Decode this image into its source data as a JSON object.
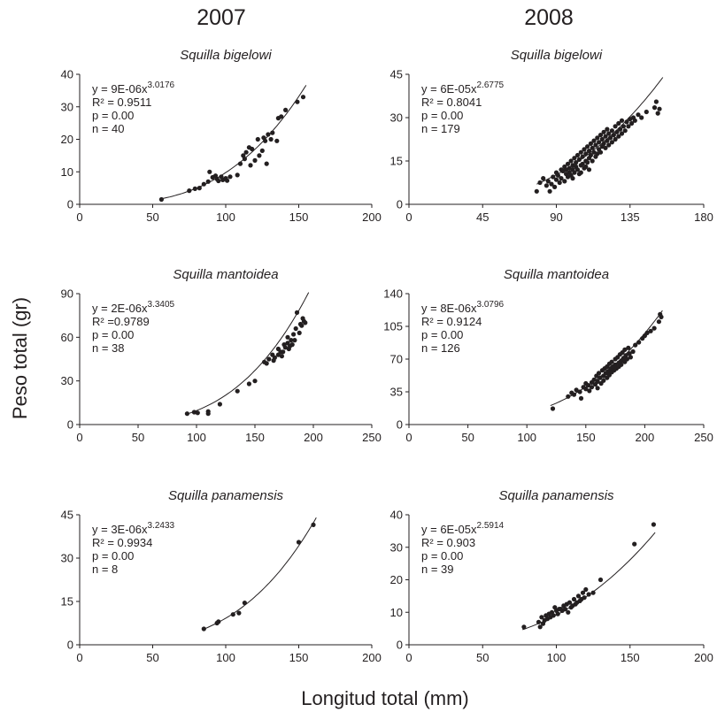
{
  "figure": {
    "years": [
      "2007",
      "2008"
    ],
    "ylabel": "Peso total (gr)",
    "xlabel": "Longitud total (mm)"
  },
  "chart_data": [
    {
      "type": "scatter",
      "year": "2007",
      "title": "Squilla bigelowi",
      "xlim": [
        0,
        200
      ],
      "ylim": [
        0,
        40
      ],
      "xticks": [
        0,
        50,
        100,
        150,
        200
      ],
      "yticks": [
        0,
        10,
        20,
        30,
        40
      ],
      "fit": {
        "a": 9e-06,
        "b": 3.0176,
        "x_range": [
          55,
          155
        ]
      },
      "equation": "y = 9E-06x",
      "exponent": "3.0176",
      "stats": [
        "R² = 0.9511",
        "p = 0.00",
        "n = 40"
      ],
      "points": [
        [
          56,
          1.5
        ],
        [
          75,
          4.2
        ],
        [
          79,
          4.8
        ],
        [
          82,
          5.0
        ],
        [
          85,
          6.2
        ],
        [
          88,
          7.0
        ],
        [
          89,
          10.0
        ],
        [
          91,
          8.3
        ],
        [
          93,
          8.8
        ],
        [
          94,
          7.8
        ],
        [
          95,
          7.2
        ],
        [
          97,
          8.5
        ],
        [
          98,
          7.5
        ],
        [
          100,
          8.0
        ],
        [
          101,
          7.3
        ],
        [
          103,
          8.5
        ],
        [
          108,
          9.0
        ],
        [
          110,
          12.5
        ],
        [
          112,
          15.0
        ],
        [
          113,
          14.0
        ],
        [
          114,
          16.0
        ],
        [
          116,
          17.5
        ],
        [
          117,
          12.0
        ],
        [
          118,
          17.0
        ],
        [
          120,
          13.5
        ],
        [
          122,
          20.0
        ],
        [
          123,
          15.0
        ],
        [
          125,
          16.5
        ],
        [
          126,
          20.5
        ],
        [
          127,
          19.5
        ],
        [
          128,
          12.5
        ],
        [
          129,
          21.5
        ],
        [
          131,
          20.0
        ],
        [
          132,
          22.0
        ],
        [
          135,
          19.5
        ],
        [
          136,
          26.5
        ],
        [
          138,
          27.0
        ],
        [
          141,
          29.0
        ],
        [
          153,
          33.0
        ],
        [
          149,
          31.5
        ]
      ]
    },
    {
      "type": "scatter",
      "year": "2008",
      "title": "Squilla bigelowi",
      "xlim": [
        0,
        180
      ],
      "ylim": [
        0,
        45
      ],
      "xticks": [
        0,
        45,
        90,
        135,
        180
      ],
      "yticks": [
        0,
        15,
        30,
        45
      ],
      "fit": {
        "a": 6e-05,
        "b": 2.6775,
        "x_range": [
          78,
          155
        ]
      },
      "equation": "y = 6E-05x",
      "exponent": "2.6775",
      "stats": [
        "R² = 0.8041",
        "p = 0.00",
        "n = 179"
      ],
      "points": [
        [
          78,
          4.5
        ],
        [
          80,
          7.5
        ],
        [
          82,
          9.0
        ],
        [
          84,
          6.5
        ],
        [
          85,
          8.0
        ],
        [
          86,
          4.5
        ],
        [
          87,
          7.0
        ],
        [
          88,
          9.5
        ],
        [
          89,
          6.0
        ],
        [
          90,
          8.5
        ],
        [
          90,
          11.0
        ],
        [
          91,
          10.0
        ],
        [
          92,
          7.5
        ],
        [
          93,
          12.0
        ],
        [
          93,
          9.0
        ],
        [
          94,
          11.5
        ],
        [
          95,
          8.0
        ],
        [
          95,
          13.0
        ],
        [
          96,
          10.5
        ],
        [
          96,
          12.0
        ],
        [
          97,
          9.5
        ],
        [
          97,
          14.0
        ],
        [
          98,
          11.0
        ],
        [
          98,
          12.5
        ],
        [
          99,
          10.0
        ],
        [
          99,
          15.0
        ],
        [
          100,
          12.0
        ],
        [
          100,
          13.5
        ],
        [
          100,
          9.0
        ],
        [
          101,
          11.0
        ],
        [
          101,
          16.0
        ],
        [
          102,
          13.0
        ],
        [
          102,
          14.5
        ],
        [
          103,
          12.0
        ],
        [
          103,
          17.0
        ],
        [
          104,
          10.5
        ],
        [
          104,
          15.5
        ],
        [
          105,
          13.5
        ],
        [
          105,
          18.0
        ],
        [
          105,
          11.0
        ],
        [
          106,
          14.0
        ],
        [
          106,
          16.5
        ],
        [
          107,
          12.5
        ],
        [
          107,
          19.0
        ],
        [
          108,
          15.0
        ],
        [
          108,
          17.5
        ],
        [
          108,
          13.0
        ],
        [
          109,
          14.5
        ],
        [
          109,
          20.0
        ],
        [
          110,
          16.0
        ],
        [
          110,
          18.5
        ],
        [
          110,
          12.0
        ],
        [
          111,
          17.0
        ],
        [
          111,
          21.0
        ],
        [
          112,
          15.0
        ],
        [
          112,
          19.5
        ],
        [
          113,
          18.0
        ],
        [
          113,
          22.0
        ],
        [
          114,
          16.5
        ],
        [
          114,
          20.5
        ],
        [
          115,
          17.5
        ],
        [
          115,
          23.0
        ],
        [
          116,
          19.0
        ],
        [
          116,
          21.5
        ],
        [
          117,
          18.0
        ],
        [
          117,
          24.0
        ],
        [
          118,
          20.0
        ],
        [
          118,
          22.5
        ],
        [
          119,
          21.0
        ],
        [
          119,
          25.0
        ],
        [
          120,
          19.5
        ],
        [
          120,
          23.5
        ],
        [
          121,
          22.0
        ],
        [
          121,
          26.0
        ],
        [
          122,
          20.5
        ],
        [
          122,
          24.5
        ],
        [
          123,
          23.0
        ],
        [
          124,
          21.5
        ],
        [
          124,
          25.5
        ],
        [
          125,
          24.0
        ],
        [
          126,
          22.5
        ],
        [
          126,
          27.0
        ],
        [
          127,
          25.0
        ],
        [
          128,
          23.5
        ],
        [
          128,
          28.0
        ],
        [
          129,
          26.0
        ],
        [
          130,
          24.5
        ],
        [
          130,
          29.0
        ],
        [
          131,
          27.0
        ],
        [
          132,
          25.5
        ],
        [
          133,
          28.5
        ],
        [
          134,
          27.0
        ],
        [
          135,
          29.5
        ],
        [
          136,
          28.0
        ],
        [
          137,
          30.0
        ],
        [
          138,
          29.0
        ],
        [
          140,
          31.0
        ],
        [
          142,
          30.0
        ],
        [
          145,
          32.0
        ],
        [
          150,
          33.5
        ],
        [
          151,
          35.5
        ],
        [
          153,
          33.0
        ],
        [
          152,
          31.5
        ]
      ]
    },
    {
      "type": "scatter",
      "year": "2007",
      "title": "Squilla mantoidea",
      "xlim": [
        0,
        250
      ],
      "ylim": [
        0,
        90
      ],
      "xticks": [
        0,
        50,
        100,
        150,
        200,
        250
      ],
      "yticks": [
        0,
        30,
        60,
        90
      ],
      "fit": {
        "a": 2e-06,
        "b": 3.3405,
        "x_range": [
          92,
          196
        ]
      },
      "equation": "y = 2E-06x",
      "exponent": "3.3405",
      "stats": [
        "R² =0.9789",
        "p = 0.00",
        "n = 38"
      ],
      "points": [
        [
          92,
          7.5
        ],
        [
          98,
          8.5
        ],
        [
          101,
          8.0
        ],
        [
          110,
          9.0
        ],
        [
          110,
          7.5
        ],
        [
          120,
          14.0
        ],
        [
          135,
          23.0
        ],
        [
          145,
          28.0
        ],
        [
          150,
          30.0
        ],
        [
          158,
          43.0
        ],
        [
          160,
          42.0
        ],
        [
          162,
          45.0
        ],
        [
          165,
          48.0
        ],
        [
          167,
          46.0
        ],
        [
          170,
          52.0
        ],
        [
          172,
          50.0
        ],
        [
          173,
          47.0
        ],
        [
          175,
          55.0
        ],
        [
          176,
          53.0
        ],
        [
          178,
          56.0
        ],
        [
          179,
          52.0
        ],
        [
          180,
          54.0
        ],
        [
          181,
          58.0
        ],
        [
          182,
          55.0
        ],
        [
          183,
          62.0
        ],
        [
          185,
          66.0
        ],
        [
          186,
          77.0
        ],
        [
          188,
          63.0
        ],
        [
          189,
          69.0
        ],
        [
          190,
          68.0
        ],
        [
          191,
          73.0
        ],
        [
          192,
          71.0
        ],
        [
          193,
          70.0
        ],
        [
          178,
          60.0
        ],
        [
          170,
          48.0
        ],
        [
          166,
          44.0
        ],
        [
          184,
          58.0
        ],
        [
          174,
          50.0
        ]
      ]
    },
    {
      "type": "scatter",
      "year": "2008",
      "title": "Squilla mantoidea",
      "xlim": [
        0,
        250
      ],
      "ylim": [
        0,
        140
      ],
      "xticks": [
        0,
        50,
        100,
        150,
        200,
        250
      ],
      "yticks": [
        0,
        35,
        70,
        105,
        140
      ],
      "fit": {
        "a": 8e-06,
        "b": 3.0796,
        "x_range": [
          120,
          215
        ]
      },
      "equation": "y = 8E-06x",
      "exponent": "3.0796",
      "stats": [
        "R² = 0.9124",
        "p = 0.00",
        "n = 126"
      ],
      "points": [
        [
          122,
          17.0
        ],
        [
          135,
          30.0
        ],
        [
          138,
          34.0
        ],
        [
          140,
          32.0
        ],
        [
          142,
          37.0
        ],
        [
          145,
          35.0
        ],
        [
          146,
          28.0
        ],
        [
          148,
          40.0
        ],
        [
          150,
          38.0
        ],
        [
          150,
          44.0
        ],
        [
          152,
          42.0
        ],
        [
          153,
          36.0
        ],
        [
          155,
          45.0
        ],
        [
          155,
          40.0
        ],
        [
          157,
          48.0
        ],
        [
          158,
          43.0
        ],
        [
          159,
          52.0
        ],
        [
          160,
          46.0
        ],
        [
          160,
          39.0
        ],
        [
          161,
          55.0
        ],
        [
          162,
          50.0
        ],
        [
          163,
          44.0
        ],
        [
          164,
          58.0
        ],
        [
          165,
          52.0
        ],
        [
          165,
          47.0
        ],
        [
          166,
          60.0
        ],
        [
          167,
          55.0
        ],
        [
          168,
          50.0
        ],
        [
          168,
          62.0
        ],
        [
          169,
          57.0
        ],
        [
          170,
          53.0
        ],
        [
          170,
          65.0
        ],
        [
          171,
          60.0
        ],
        [
          172,
          56.0
        ],
        [
          172,
          67.0
        ],
        [
          173,
          62.0
        ],
        [
          174,
          58.0
        ],
        [
          175,
          70.0
        ],
        [
          175,
          64.0
        ],
        [
          176,
          60.0
        ],
        [
          177,
          72.0
        ],
        [
          178,
          66.0
        ],
        [
          178,
          62.0
        ],
        [
          179,
          75.0
        ],
        [
          180,
          68.0
        ],
        [
          180,
          64.0
        ],
        [
          181,
          77.0
        ],
        [
          182,
          71.0
        ],
        [
          183,
          67.0
        ],
        [
          183,
          80.0
        ],
        [
          184,
          74.0
        ],
        [
          185,
          70.0
        ],
        [
          186,
          82.0
        ],
        [
          187,
          76.0
        ],
        [
          188,
          72.0
        ],
        [
          190,
          78.0
        ],
        [
          192,
          85.0
        ],
        [
          195,
          88.0
        ],
        [
          198,
          92.0
        ],
        [
          200,
          95.0
        ],
        [
          202,
          98.0
        ],
        [
          205,
          100.0
        ],
        [
          208,
          103.0
        ],
        [
          212,
          110.0
        ],
        [
          213,
          118.0
        ],
        [
          214,
          115.0
        ]
      ]
    },
    {
      "type": "scatter",
      "year": "2007",
      "title": "Squilla panamensis",
      "xlim": [
        0,
        200
      ],
      "ylim": [
        0,
        45
      ],
      "xticks": [
        0,
        50,
        100,
        150,
        200
      ],
      "yticks": [
        0,
        15,
        30,
        45
      ],
      "fit": {
        "a": 3e-06,
        "b": 3.2433,
        "x_range": [
          85,
          162
        ]
      },
      "equation": "y = 3E-06x",
      "exponent": "3.2433",
      "stats": [
        "R² = 0.9934",
        "p = 0.00",
        "n = 8"
      ],
      "points": [
        [
          85,
          5.5
        ],
        [
          94,
          7.5
        ],
        [
          105,
          10.5
        ],
        [
          109,
          11.0
        ],
        [
          113,
          14.5
        ],
        [
          150,
          35.5
        ],
        [
          160,
          41.5
        ],
        [
          95,
          8.0
        ]
      ]
    },
    {
      "type": "scatter",
      "year": "2008",
      "title": "Squilla panamensis",
      "xlim": [
        0,
        200
      ],
      "ylim": [
        0,
        40
      ],
      "xticks": [
        0,
        50,
        100,
        150,
        200
      ],
      "yticks": [
        0,
        10,
        20,
        30,
        40
      ],
      "fit": {
        "a": 6e-05,
        "b": 2.5914,
        "x_range": [
          77,
          167
        ]
      },
      "equation": "y = 6E-05x",
      "exponent": "2.5914",
      "stats": [
        "R² = 0.903",
        "p = 0.00",
        "n = 39"
      ],
      "points": [
        [
          78,
          5.5
        ],
        [
          88,
          7.0
        ],
        [
          89,
          5.5
        ],
        [
          90,
          8.5
        ],
        [
          91,
          6.5
        ],
        [
          92,
          7.5
        ],
        [
          93,
          9.0
        ],
        [
          94,
          8.0
        ],
        [
          95,
          9.5
        ],
        [
          96,
          8.5
        ],
        [
          97,
          10.0
        ],
        [
          98,
          9.0
        ],
        [
          99,
          11.5
        ],
        [
          100,
          10.5
        ],
        [
          101,
          9.5
        ],
        [
          102,
          11.0
        ],
        [
          104,
          10.5
        ],
        [
          105,
          12.0
        ],
        [
          106,
          11.0
        ],
        [
          107,
          12.5
        ],
        [
          108,
          10.0
        ],
        [
          109,
          13.0
        ],
        [
          110,
          11.5
        ],
        [
          111,
          12.0
        ],
        [
          112,
          14.0
        ],
        [
          113,
          12.5
        ],
        [
          114,
          13.0
        ],
        [
          115,
          15.0
        ],
        [
          116,
          13.5
        ],
        [
          117,
          14.0
        ],
        [
          118,
          16.0
        ],
        [
          119,
          14.5
        ],
        [
          120,
          17.0
        ],
        [
          122,
          15.5
        ],
        [
          125,
          16.0
        ],
        [
          130,
          20.0
        ],
        [
          153,
          31.0
        ],
        [
          166,
          37.0
        ],
        [
          103,
          11.0
        ]
      ]
    }
  ]
}
